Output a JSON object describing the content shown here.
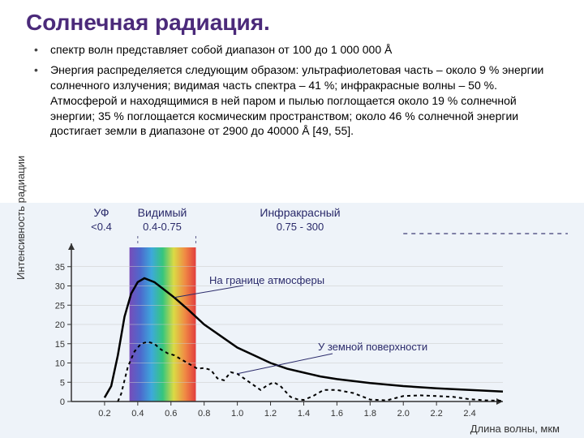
{
  "title": "Солнечная радиация.",
  "bullets": [
    "спектр волн представляет собой диапазон от 100 до 1 000 000 Å",
    "Энергия распределяется следующим образом: ультрафиолетовая часть – около 9 % энергии солнечного излучения; видимая часть спектра – 41 %; инфракрасные волны – 50 %. Атмосферой и находящимися в ней паром и пылью поглощается около 19 % солнечной энергии; 35 % поглощается космическим пространством; около 46 % солнечной энергии достигает земли в диапазоне от 2900 до 40000 Å [49, 55]."
  ],
  "chart": {
    "type": "line",
    "background_color": "#eef3f9",
    "plot_bg": "#ffffff",
    "grid_color": "#c8c8c8",
    "axis_color": "#333333",
    "xlabel": "Длина волны, мкм",
    "ylabel": "Интенсивность радиации",
    "xlim": [
      0.0,
      2.6
    ],
    "ylim": [
      0,
      40
    ],
    "xticks": [
      0.2,
      0.4,
      0.6,
      0.8,
      1.0,
      1.2,
      1.4,
      1.6,
      1.8,
      2.0,
      2.2,
      2.4
    ],
    "yticks": [
      0,
      5,
      10,
      15,
      20,
      25,
      30,
      35
    ],
    "spectrum": {
      "start_x": 0.35,
      "end_x": 0.75,
      "colors": [
        "#6a3ab2",
        "#3a5ac8",
        "#2aa0d8",
        "#20c070",
        "#d8d830",
        "#f08030",
        "#e02828"
      ]
    },
    "regions": {
      "uv": {
        "label": "УФ",
        "sub": "<0.4"
      },
      "visible": {
        "label": "Видимый",
        "sub": "0.4-0.75"
      },
      "ir": {
        "label": "Инфракрасный",
        "sub": "0.75 - 300"
      }
    },
    "curves": {
      "top": {
        "label": "На границе атмосферы",
        "color": "#000000",
        "width": 2.5,
        "dash": "none",
        "points": [
          [
            0.2,
            1
          ],
          [
            0.24,
            4
          ],
          [
            0.28,
            12
          ],
          [
            0.32,
            22
          ],
          [
            0.36,
            28
          ],
          [
            0.4,
            31
          ],
          [
            0.44,
            32
          ],
          [
            0.5,
            31
          ],
          [
            0.56,
            29
          ],
          [
            0.62,
            27
          ],
          [
            0.7,
            24
          ],
          [
            0.8,
            20
          ],
          [
            0.9,
            17
          ],
          [
            1.0,
            14
          ],
          [
            1.1,
            12
          ],
          [
            1.2,
            10
          ],
          [
            1.3,
            8.5
          ],
          [
            1.4,
            7.5
          ],
          [
            1.5,
            6.5
          ],
          [
            1.6,
            5.8
          ],
          [
            1.8,
            4.8
          ],
          [
            2.0,
            4.0
          ],
          [
            2.2,
            3.4
          ],
          [
            2.4,
            3.0
          ],
          [
            2.6,
            2.6
          ]
        ]
      },
      "surface": {
        "label": "У земной поверхности",
        "color": "#000000",
        "width": 2,
        "dash": "4 4",
        "points": [
          [
            0.28,
            0
          ],
          [
            0.3,
            2
          ],
          [
            0.34,
            9
          ],
          [
            0.38,
            13
          ],
          [
            0.42,
            15
          ],
          [
            0.46,
            15.5
          ],
          [
            0.5,
            15
          ],
          [
            0.54,
            13.5
          ],
          [
            0.58,
            12.5
          ],
          [
            0.62,
            12
          ],
          [
            0.66,
            11
          ],
          [
            0.7,
            10
          ],
          [
            0.76,
            8.5
          ],
          [
            0.8,
            8.7
          ],
          [
            0.84,
            8.2
          ],
          [
            0.88,
            6.0
          ],
          [
            0.92,
            5.5
          ],
          [
            0.96,
            7.6
          ],
          [
            1.0,
            7.2
          ],
          [
            1.04,
            6.0
          ],
          [
            1.1,
            4.2
          ],
          [
            1.14,
            3.0
          ],
          [
            1.18,
            4.2
          ],
          [
            1.22,
            5.0
          ],
          [
            1.26,
            4.0
          ],
          [
            1.32,
            1.2
          ],
          [
            1.36,
            0.6
          ],
          [
            1.4,
            0.4
          ],
          [
            1.46,
            1.5
          ],
          [
            1.52,
            3.0
          ],
          [
            1.6,
            3.0
          ],
          [
            1.7,
            2.2
          ],
          [
            1.8,
            0.5
          ],
          [
            1.9,
            0.3
          ],
          [
            2.0,
            1.4
          ],
          [
            2.1,
            1.6
          ],
          [
            2.2,
            1.4
          ],
          [
            2.3,
            1.2
          ],
          [
            2.4,
            0.6
          ],
          [
            2.5,
            0.3
          ],
          [
            2.6,
            0.2
          ]
        ]
      }
    }
  }
}
